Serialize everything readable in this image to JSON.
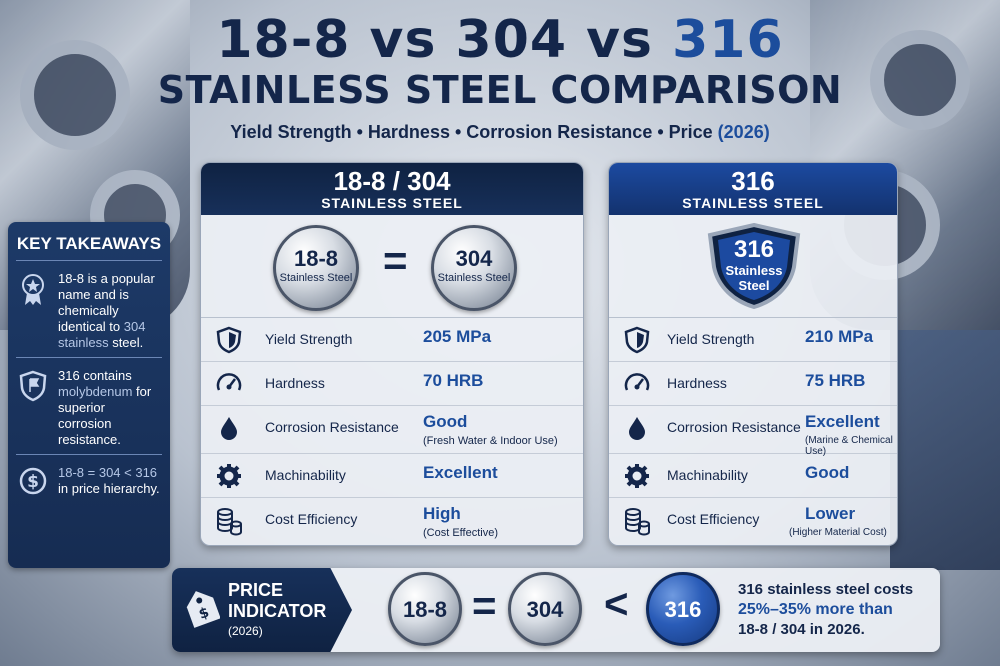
{
  "header": {
    "title_part1": "18-8 vs 304 vs ",
    "title_accent": "316",
    "title_line2": "STAINLESS STEEL COMPARISON",
    "subtitle_main": "Yield Strength • Hardness • Corrosion Resistance • Price ",
    "subtitle_year": "(2026)"
  },
  "takeaways": {
    "heading": "KEY TAKEAWAYS",
    "items": [
      {
        "icon": "award-badge-icon",
        "pre": "18-8 is a popular name and is chemically identical to ",
        "hl": "304 stainless",
        "post": " steel."
      },
      {
        "icon": "shield-flag-icon",
        "pre": "316 contains ",
        "hl": "molybdenum",
        "post": " for superior corrosion resistance."
      },
      {
        "icon": "dollar-icon",
        "pre": "",
        "hl": "18-8 = 304 < 316",
        "post": " in price hierarchy."
      }
    ]
  },
  "left_panel": {
    "title": "18-8 / 304",
    "subtitle": "STAINLESS STEEL",
    "coin_a_big": "18-8",
    "coin_a_small": "Stainless Steel",
    "equals": "=",
    "coin_b_big": "304",
    "coin_b_small": "Stainless Steel",
    "rows": [
      {
        "icon": "shield-icon",
        "label": "Yield Strength",
        "value": "205 MPa",
        "note": ""
      },
      {
        "icon": "gauge-icon",
        "label": "Hardness",
        "value": "70 HRB",
        "note": ""
      },
      {
        "icon": "water-drop-icon",
        "label": "Corrosion Resistance",
        "value": "Good",
        "note": "(Fresh Water & Indoor Use)"
      },
      {
        "icon": "gear-icon",
        "label": "Machinability",
        "value": "Excellent",
        "note": ""
      },
      {
        "icon": "coin-stack-icon",
        "label": "Cost Efficiency",
        "value": "High",
        "note": "(Cost Effective)"
      }
    ]
  },
  "right_panel": {
    "title": "316",
    "subtitle": "STAINLESS STEEL",
    "shield_big": "316",
    "shield_small1": "Stainless",
    "shield_small2": "Steel",
    "rows": [
      {
        "icon": "shield-icon",
        "label": "Yield Strength",
        "value": "210 MPa",
        "note": ""
      },
      {
        "icon": "gauge-icon",
        "label": "Hardness",
        "value": "75 HRB",
        "note": ""
      },
      {
        "icon": "water-drop-icon",
        "label": "Corrosion Resistance",
        "value": "Excellent",
        "note": "(Marine & Chemical Use)"
      },
      {
        "icon": "gear-icon",
        "label": "Machinability",
        "value": "Good",
        "note": ""
      },
      {
        "icon": "coin-stack-icon",
        "label": "Cost Efficiency",
        "value": "Lower",
        "note": "(Higher Material Cost)"
      }
    ]
  },
  "price": {
    "label1": "PRICE",
    "label2": "INDICATOR",
    "label3": "(2026)",
    "coin1": "18-8",
    "eq": "=",
    "coin2": "304",
    "lt": "<",
    "coin3": "316",
    "text1": "316 stainless steel costs",
    "text_hl": "25%–35% more than",
    "text2": "18-8 / 304 in 2026."
  }
}
